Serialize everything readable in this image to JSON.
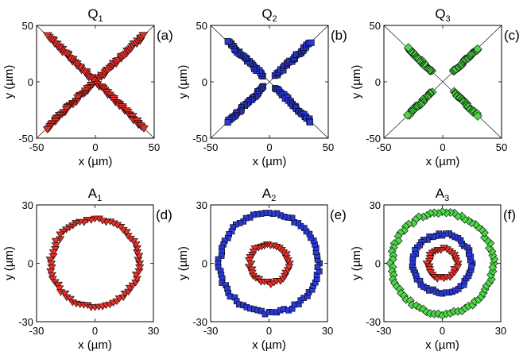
{
  "chart_data": [
    {
      "id": "Q1",
      "type": "scatter",
      "title": {
        "main": "Q",
        "sub": "1"
      },
      "letter": "(a)",
      "xlabel": "x (µm)",
      "ylabel": "y (µm)",
      "xlim": [
        -50,
        50
      ],
      "ylim": [
        -50,
        50
      ],
      "xticks": [
        -50,
        0,
        50
      ],
      "yticks": [
        -50,
        0,
        50
      ],
      "diagonals": true,
      "series": [
        {
          "marker": "triangle-down",
          "color": "#e8302a",
          "shape": "x",
          "rmin": 3,
          "rmax": 58,
          "count": 32
        }
      ]
    },
    {
      "id": "Q2",
      "type": "scatter",
      "title": {
        "main": "Q",
        "sub": "2"
      },
      "letter": "(b)",
      "xlabel": "x (µm)",
      "ylabel": "y (µm)",
      "xlim": [
        -50,
        50
      ],
      "ylim": [
        -50,
        50
      ],
      "xticks": [
        -50,
        0,
        50
      ],
      "yticks": [
        -50,
        0,
        50
      ],
      "diagonals": true,
      "series": [
        {
          "marker": "square",
          "color": "#2a3ad8",
          "shape": "x",
          "rmin": 7,
          "rmax": 50,
          "count": 30
        }
      ]
    },
    {
      "id": "Q3",
      "type": "scatter",
      "title": {
        "main": "Q",
        "sub": "3"
      },
      "letter": "(c)",
      "xlabel": "x (µm)",
      "ylabel": "y (µm)",
      "xlim": [
        -50,
        50
      ],
      "ylim": [
        -50,
        50
      ],
      "xticks": [
        -50,
        0,
        50
      ],
      "yticks": [
        -50,
        0,
        50
      ],
      "diagonals": true,
      "series": [
        {
          "marker": "diamond",
          "color": "#4fd84a",
          "shape": "x",
          "rmin": 13,
          "rmax": 42,
          "count": 24
        }
      ]
    },
    {
      "id": "A1",
      "type": "scatter",
      "title": {
        "main": "A",
        "sub": "1"
      },
      "letter": "(d)",
      "xlabel": "x (µm)",
      "ylabel": "y (µm)",
      "xlim": [
        -30,
        30
      ],
      "ylim": [
        -30,
        30
      ],
      "xticks": [
        -30,
        0,
        30
      ],
      "yticks": [
        -30,
        0,
        30
      ],
      "diagonals": false,
      "series": [
        {
          "marker": "triangle-down",
          "color": "#e8302a",
          "shape": "ring",
          "radius": 22.5,
          "count": 72
        }
      ]
    },
    {
      "id": "A2",
      "type": "scatter",
      "title": {
        "main": "A",
        "sub": "2"
      },
      "letter": "(e)",
      "xlabel": "x (µm)",
      "ylabel": "y (µm)",
      "xlim": [
        -30,
        30
      ],
      "ylim": [
        -30,
        30
      ],
      "xticks": [
        -30,
        0,
        30
      ],
      "yticks": [
        -30,
        0,
        30
      ],
      "diagonals": false,
      "series": [
        {
          "marker": "square",
          "color": "#2a3ad8",
          "shape": "ring",
          "radius": 25.5,
          "count": 80
        },
        {
          "marker": "triangle-down",
          "color": "#e8302a",
          "shape": "ring",
          "radius": 10,
          "count": 38
        }
      ]
    },
    {
      "id": "A3",
      "type": "scatter",
      "title": {
        "main": "A",
        "sub": "3"
      },
      "letter": "(f)",
      "xlabel": "x (µm)",
      "ylabel": "y (µm)",
      "xlim": [
        -30,
        30
      ],
      "ylim": [
        -30,
        30
      ],
      "xticks": [
        -30,
        0,
        30
      ],
      "yticks": [
        -30,
        0,
        30
      ],
      "diagonals": false,
      "series": [
        {
          "marker": "diamond",
          "color": "#4fd84a",
          "shape": "ring",
          "radius": 26,
          "count": 80
        },
        {
          "marker": "square",
          "color": "#2a3ad8",
          "shape": "ring",
          "radius": 15,
          "count": 56
        },
        {
          "marker": "triangle-down",
          "color": "#e8302a",
          "shape": "ring",
          "radius": 7.5,
          "count": 30
        }
      ]
    }
  ]
}
